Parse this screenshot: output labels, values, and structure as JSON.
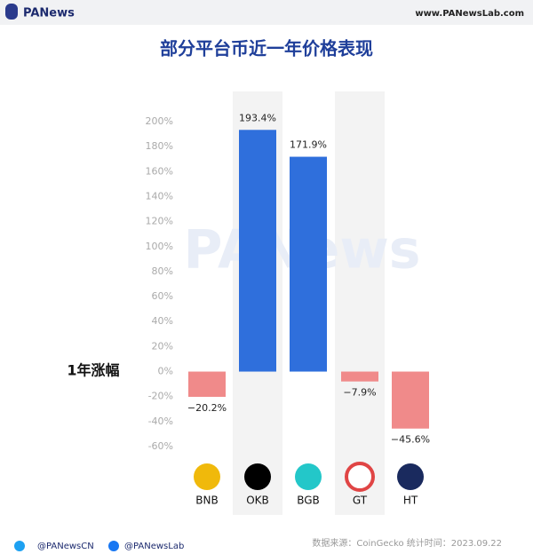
{
  "header": {
    "brand": "PANews",
    "site": "www.PANewsLab.com"
  },
  "chart_data": {
    "type": "bar",
    "title": "部分平台币近一年价格表现",
    "y_label": "1年涨幅",
    "watermark": "PANews",
    "categories": [
      "BNB",
      "OKB",
      "BGB",
      "GT",
      "HT"
    ],
    "values": [
      -20.2,
      193.4,
      171.9,
      -7.9,
      -45.6
    ],
    "value_labels": [
      "−20.2%",
      "193.4%",
      "171.9%",
      "−7.9%",
      "−45.6%"
    ],
    "positive_color": "#2f6fdc",
    "negative_color": "#f08a8a",
    "ylim": [
      -60,
      200
    ],
    "yticks": [
      {
        "value": -60,
        "label": "-60%"
      },
      {
        "value": -40,
        "label": "-40%"
      },
      {
        "value": -20,
        "label": "-20%"
      },
      {
        "value": 0,
        "label": "0%"
      },
      {
        "value": 20,
        "label": "20%"
      },
      {
        "value": 40,
        "label": "40%"
      },
      {
        "value": 60,
        "label": "60%"
      },
      {
        "value": 80,
        "label": "80%"
      },
      {
        "value": 100,
        "label": "100%"
      },
      {
        "value": 120,
        "label": "120%"
      },
      {
        "value": 140,
        "label": "140%"
      },
      {
        "value": 160,
        "label": "160%"
      },
      {
        "value": 180,
        "label": "180%"
      },
      {
        "value": 200,
        "label": "200%"
      }
    ],
    "grid": false
  },
  "footer": {
    "twitter": "@PANewsCN",
    "facebook": "@PANewsLab",
    "source": "数据来源：CoinGecko 统计时间：2023.09.22"
  }
}
